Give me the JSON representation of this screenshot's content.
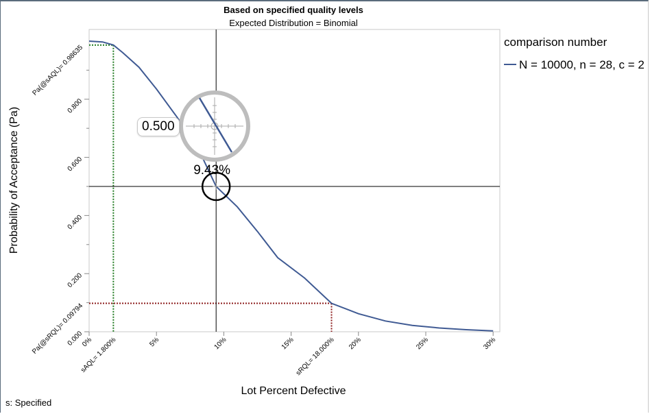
{
  "chart_data": {
    "type": "line",
    "title": "Based on specified quality levels",
    "subtitle": "Expected Distribution = Binomial",
    "xlabel": "Lot Percent Defective",
    "ylabel": "Probability of Acceptance (Pa)",
    "xlim": [
      0,
      30.5
    ],
    "ylim": [
      0,
      1.04
    ],
    "x_ticks": [
      "0%",
      "5%",
      "10%",
      "15%",
      "20%",
      "25%",
      "30%"
    ],
    "x_tick_values": [
      0,
      5,
      10,
      15,
      20,
      25,
      30
    ],
    "y_ticks": [
      "0.000",
      "0.200",
      "0.400",
      "0.600",
      "0.800"
    ],
    "y_tick_values": [
      0,
      0.2,
      0.4,
      0.6,
      0.8
    ],
    "series": [
      {
        "name": "N = 10000, n = 28, c = 2",
        "color": "#3f5a93",
        "x": [
          0,
          1,
          1.8,
          2.5,
          3.7,
          5,
          6.5,
          8,
          9.43,
          11,
          12.5,
          14,
          16,
          18,
          20,
          22,
          24,
          26,
          28,
          30
        ],
        "y": [
          1.0,
          0.997,
          0.98635,
          0.96,
          0.91,
          0.835,
          0.74,
          0.64,
          0.5,
          0.43,
          0.345,
          0.255,
          0.185,
          0.09794,
          0.062,
          0.037,
          0.022,
          0.013,
          0.007,
          0.003
        ]
      }
    ],
    "legend": {
      "title": "comparison number",
      "position": "right"
    },
    "reference_lines": {
      "aql": {
        "x": 1.8,
        "y": 0.98635,
        "x_label": "sAQL= 1.800%",
        "y_label": "Pa(@sAQL)= 0.98635",
        "color": "#1f7a1f"
      },
      "rql": {
        "x": 18.0,
        "y": 0.09794,
        "x_label": "sRQL= 18.000%",
        "y_label": "Pa(@sRQL)= 0.09794",
        "color": "#8b1a1a"
      }
    },
    "crosshair": {
      "x": 9.43,
      "y": 0.5,
      "x_readout": "9.43%",
      "y_readout": "0.500"
    }
  },
  "footnote": "s: Specified"
}
